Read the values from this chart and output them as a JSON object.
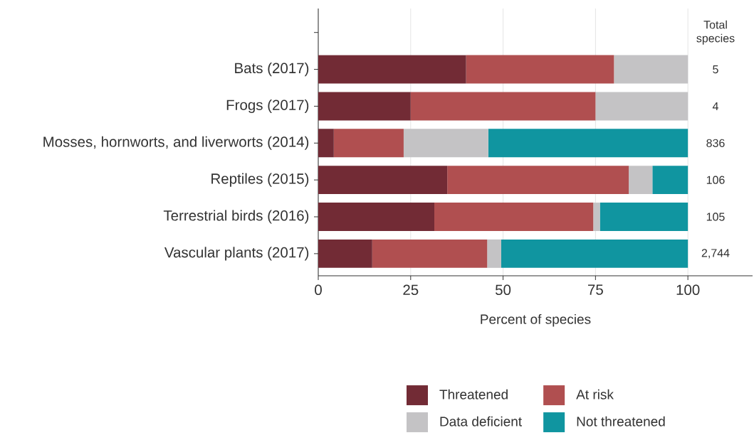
{
  "chart_data": {
    "type": "bar",
    "orientation": "horizontal",
    "stacked": true,
    "categories": [
      null,
      "Bats (2017)",
      "Frogs (2017)",
      "Mosses, hornworts, and liverworts (2014)",
      "Reptiles (2015)",
      "Terrestrial birds (2016)",
      "Vascular plants (2017)"
    ],
    "series": [
      {
        "name": "Threatened",
        "color": "#722b35",
        "values": [
          null,
          40,
          25,
          4.2,
          34.9,
          31.4,
          14.6
        ]
      },
      {
        "name": "At risk",
        "color": "#b04f50",
        "values": [
          null,
          40,
          50,
          18.9,
          49.1,
          43,
          31.1
        ]
      },
      {
        "name": "Data deficient",
        "color": "#c4c3c5",
        "values": [
          null,
          20,
          25,
          22.9,
          6.4,
          1.8,
          3.8
        ]
      },
      {
        "name": "Not threatened",
        "color": "#1095a0",
        "values": [
          null,
          0,
          0,
          54,
          9.6,
          23.8,
          50.5
        ]
      }
    ],
    "annotations": [
      "Total species",
      "5",
      "4",
      "836",
      "106",
      "105",
      "2,744"
    ],
    "xlabel": "Percent of species",
    "xlim": [
      0,
      117.5
    ],
    "xticks": [
      0,
      25,
      50,
      75,
      100
    ],
    "grid": "x",
    "legend": "bottom"
  }
}
